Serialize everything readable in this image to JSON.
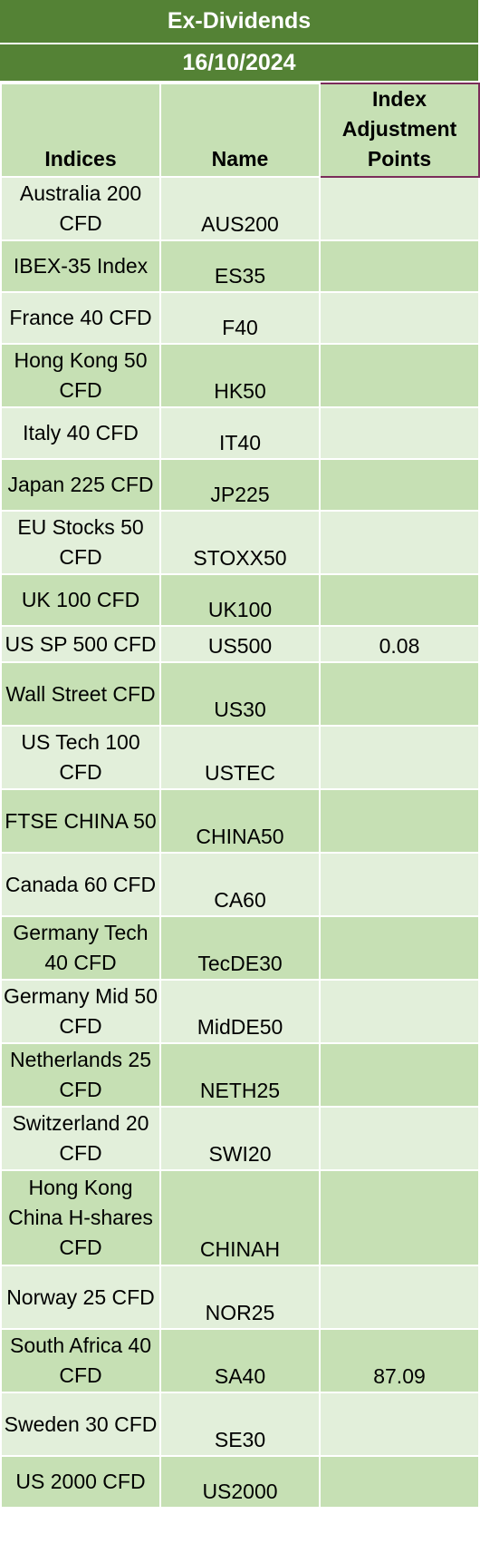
{
  "header": {
    "title": "Ex-Dividends",
    "date": "16/10/2024"
  },
  "columns": {
    "indices": "Indices",
    "name": "Name",
    "adjustment": "Index Adjustment Points"
  },
  "colors": {
    "banner": "#548235",
    "dark_row": "#c6e0b4",
    "light_row": "#e2efda",
    "header_accent": "#7b2c5a"
  },
  "rows": [
    {
      "index": "Australia 200 CFD",
      "name": "AUS200",
      "points": ""
    },
    {
      "index": "IBEX-35 Index",
      "name": "ES35",
      "points": ""
    },
    {
      "index": "France 40 CFD",
      "name": "F40",
      "points": ""
    },
    {
      "index": "Hong Kong 50 CFD",
      "name": "HK50",
      "points": ""
    },
    {
      "index": "Italy 40 CFD",
      "name": "IT40",
      "points": ""
    },
    {
      "index": "Japan 225 CFD",
      "name": "JP225",
      "points": ""
    },
    {
      "index": "EU Stocks 50 CFD",
      "name": "STOXX50",
      "points": ""
    },
    {
      "index": "UK 100 CFD",
      "name": "UK100",
      "points": ""
    },
    {
      "index": "US SP 500 CFD",
      "name": "US500",
      "points": "0.08"
    },
    {
      "index": "Wall Street CFD",
      "name": "US30",
      "points": ""
    },
    {
      "index": "US Tech 100 CFD",
      "name": "USTEC",
      "points": ""
    },
    {
      "index": "FTSE CHINA 50",
      "name": "CHINA50",
      "points": ""
    },
    {
      "index": "Canada 60 CFD",
      "name": "CA60",
      "points": ""
    },
    {
      "index": "Germany Tech 40 CFD",
      "name": "TecDE30",
      "points": ""
    },
    {
      "index": "Germany Mid 50 CFD",
      "name": "MidDE50",
      "points": ""
    },
    {
      "index": "Netherlands 25 CFD",
      "name": "NETH25",
      "points": ""
    },
    {
      "index": "Switzerland 20 CFD",
      "name": "SWI20",
      "points": ""
    },
    {
      "index": "Hong Kong China H-shares CFD",
      "name": "CHINAH",
      "points": ""
    },
    {
      "index": "Norway 25 CFD",
      "name": "NOR25",
      "points": ""
    },
    {
      "index": "South Africa 40 CFD",
      "name": "SA40",
      "points": "87.09"
    },
    {
      "index": "Sweden 30 CFD",
      "name": "SE30",
      "points": ""
    },
    {
      "index": "US 2000 CFD",
      "name": "US2000",
      "points": ""
    }
  ]
}
